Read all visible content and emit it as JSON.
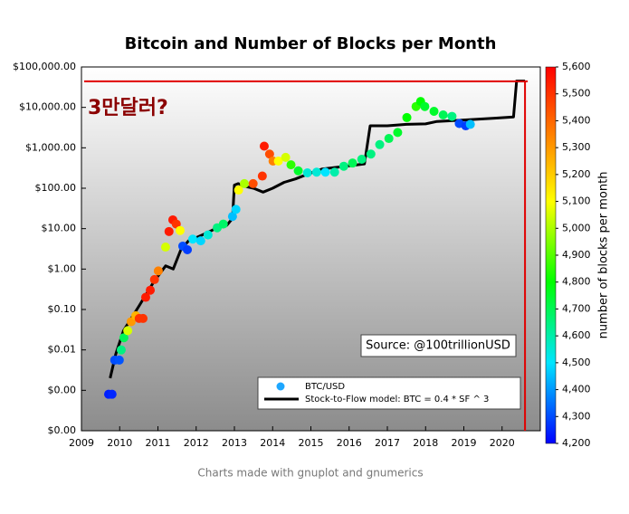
{
  "chart_data": {
    "type": "scatter",
    "title": "Bitcoin and Number of Blocks per Month",
    "log_y": true,
    "xlim": [
      2009,
      2021
    ],
    "xticks": [
      2009,
      2010,
      2011,
      2012,
      2013,
      2014,
      2015,
      2016,
      2017,
      2018,
      2019,
      2020
    ],
    "ylim": [
      0.0001,
      100000
    ],
    "yticks": [
      {
        "value": 0.0001,
        "label": "$0.00"
      },
      {
        "value": 0.001,
        "label": "$0.00"
      },
      {
        "value": 0.01,
        "label": "$0.01"
      },
      {
        "value": 0.1,
        "label": "$0.10"
      },
      {
        "value": 1,
        "label": "$1.00"
      },
      {
        "value": 10,
        "label": "$10.00"
      },
      {
        "value": 100,
        "label": "$100.00"
      },
      {
        "value": 1000,
        "label": "$1,000.00"
      },
      {
        "value": 10000,
        "label": "$10,000.00"
      },
      {
        "value": 100000,
        "label": "$100,000.00"
      }
    ],
    "series": [
      {
        "name": "BTC/USD",
        "type": "scatter",
        "color": "#1ea7ff",
        "x": [
          2009.71,
          2009.8,
          2009.87,
          2009.99,
          2010.04,
          2010.11,
          2010.21,
          2010.3,
          2010.42,
          2010.51,
          2010.61,
          2010.68,
          2010.8,
          2010.91,
          2011.01,
          2011.2,
          2011.29,
          2011.39,
          2011.48,
          2011.58,
          2011.65,
          2011.77,
          2011.91,
          2012.12,
          2012.31,
          2012.55,
          2012.71,
          2012.95,
          2013.04,
          2013.11,
          2013.26,
          2013.49,
          2013.73,
          2013.78,
          2013.92,
          2014.01,
          2014.15,
          2014.34,
          2014.48,
          2014.67,
          2014.91,
          2015.15,
          2015.38,
          2015.62,
          2015.86,
          2016.09,
          2016.33,
          2016.57,
          2016.8,
          2017.04,
          2017.27,
          2017.51,
          2017.75,
          2017.87,
          2017.98,
          2018.22,
          2018.46,
          2018.69,
          2018.88,
          2019.05,
          2019.17
        ],
        "y": [
          0.0008,
          0.0008,
          0.0056,
          0.0056,
          0.01,
          0.02,
          0.03,
          0.05,
          0.07,
          0.06,
          0.06,
          0.2,
          0.3,
          0.55,
          0.9,
          3.5,
          8.5,
          16.5,
          13,
          9,
          3.7,
          3,
          5.5,
          5,
          7,
          10.5,
          13,
          20,
          30,
          90,
          130,
          130,
          200,
          1100,
          700,
          470,
          470,
          580,
          380,
          270,
          240,
          250,
          250,
          250,
          350,
          420,
          520,
          700,
          1200,
          1700,
          2400,
          5600,
          10500,
          14000,
          10500,
          8000,
          6500,
          6000,
          4000,
          3500,
          3800
        ],
        "blocks": [
          4240,
          4250,
          4300,
          4310,
          4650,
          4700,
          5050,
          5300,
          5250,
          5500,
          5500,
          5550,
          5550,
          5500,
          5350,
          5050,
          5550,
          5550,
          5500,
          5100,
          4300,
          4280,
          4500,
          4480,
          4550,
          4650,
          4680,
          4450,
          4480,
          5100,
          5000,
          5450,
          5500,
          5550,
          5450,
          5350,
          5100,
          5050,
          4850,
          4750,
          4550,
          4550,
          4500,
          4600,
          4650,
          4700,
          4650,
          4650,
          4650,
          4700,
          4750,
          4800,
          4850,
          4800,
          4750,
          4750,
          4700,
          4650,
          4300,
          4280,
          4450
        ]
      },
      {
        "name": "Stock-to-Flow model: BTC = 0.4 * SF ^ 3",
        "type": "line",
        "color": "#000000",
        "x": [
          2009.75,
          2009.9,
          2010.1,
          2010.5,
          2010.9,
          2011.2,
          2011.4,
          2011.6,
          2011.8,
          2012.0,
          2012.3,
          2012.5,
          2012.8,
          2012.95,
          2013.0,
          2013.1,
          2013.3,
          2013.5,
          2013.75,
          2014.0,
          2014.3,
          2014.6,
          2014.9,
          2015.3,
          2015.7,
          2016.0,
          2016.4,
          2016.55,
          2017.0,
          2017.5,
          2018.0,
          2018.3,
          2018.9,
          2019.2,
          2019.8,
          2020.3,
          2020.38,
          2020.6
        ],
        "y": [
          0.002,
          0.008,
          0.03,
          0.12,
          0.5,
          1.2,
          1.0,
          3,
          5,
          6,
          8,
          10,
          12,
          18,
          120,
          130,
          110,
          100,
          80,
          100,
          140,
          170,
          220,
          300,
          330,
          360,
          400,
          3500,
          3500,
          3800,
          3900,
          4500,
          4800,
          5000,
          5400,
          5800,
          45000,
          45000
        ]
      }
    ],
    "colorbar": {
      "label": "number of blocks per month",
      "lim": [
        4200,
        5600
      ],
      "ticks": [
        {
          "value": 4200,
          "label": "4,200"
        },
        {
          "value": 4300,
          "label": "4,300"
        },
        {
          "value": 4400,
          "label": "4,400"
        },
        {
          "value": 4500,
          "label": "4,500"
        },
        {
          "value": 4600,
          "label": "4,600"
        },
        {
          "value": 4700,
          "label": "4,700"
        },
        {
          "value": 4800,
          "label": "4,800"
        },
        {
          "value": 4900,
          "label": "4,900"
        },
        {
          "value": 5000,
          "label": "5,000"
        },
        {
          "value": 5100,
          "label": "5,100"
        },
        {
          "value": 5200,
          "label": "5,200"
        },
        {
          "value": 5300,
          "label": "5,300"
        },
        {
          "value": 5400,
          "label": "5,400"
        },
        {
          "value": 5500,
          "label": "5,500"
        },
        {
          "value": 5600,
          "label": "5,600"
        }
      ],
      "scale": [
        [
          4200,
          "#0000ff"
        ],
        [
          4500,
          "#00e5ff"
        ],
        [
          4800,
          "#00ff00"
        ],
        [
          5100,
          "#ffff00"
        ],
        [
          5350,
          "#ff8000"
        ],
        [
          5600,
          "#ff0000"
        ]
      ]
    },
    "source": "Source: @100trillionUSD",
    "annotation": {
      "text": "3만달러?",
      "text_color": "#8b0000",
      "line_color": "#e00000",
      "y": 44000,
      "x": 2020.6
    }
  },
  "footer": "Charts made with gnuplot and gnumerics"
}
